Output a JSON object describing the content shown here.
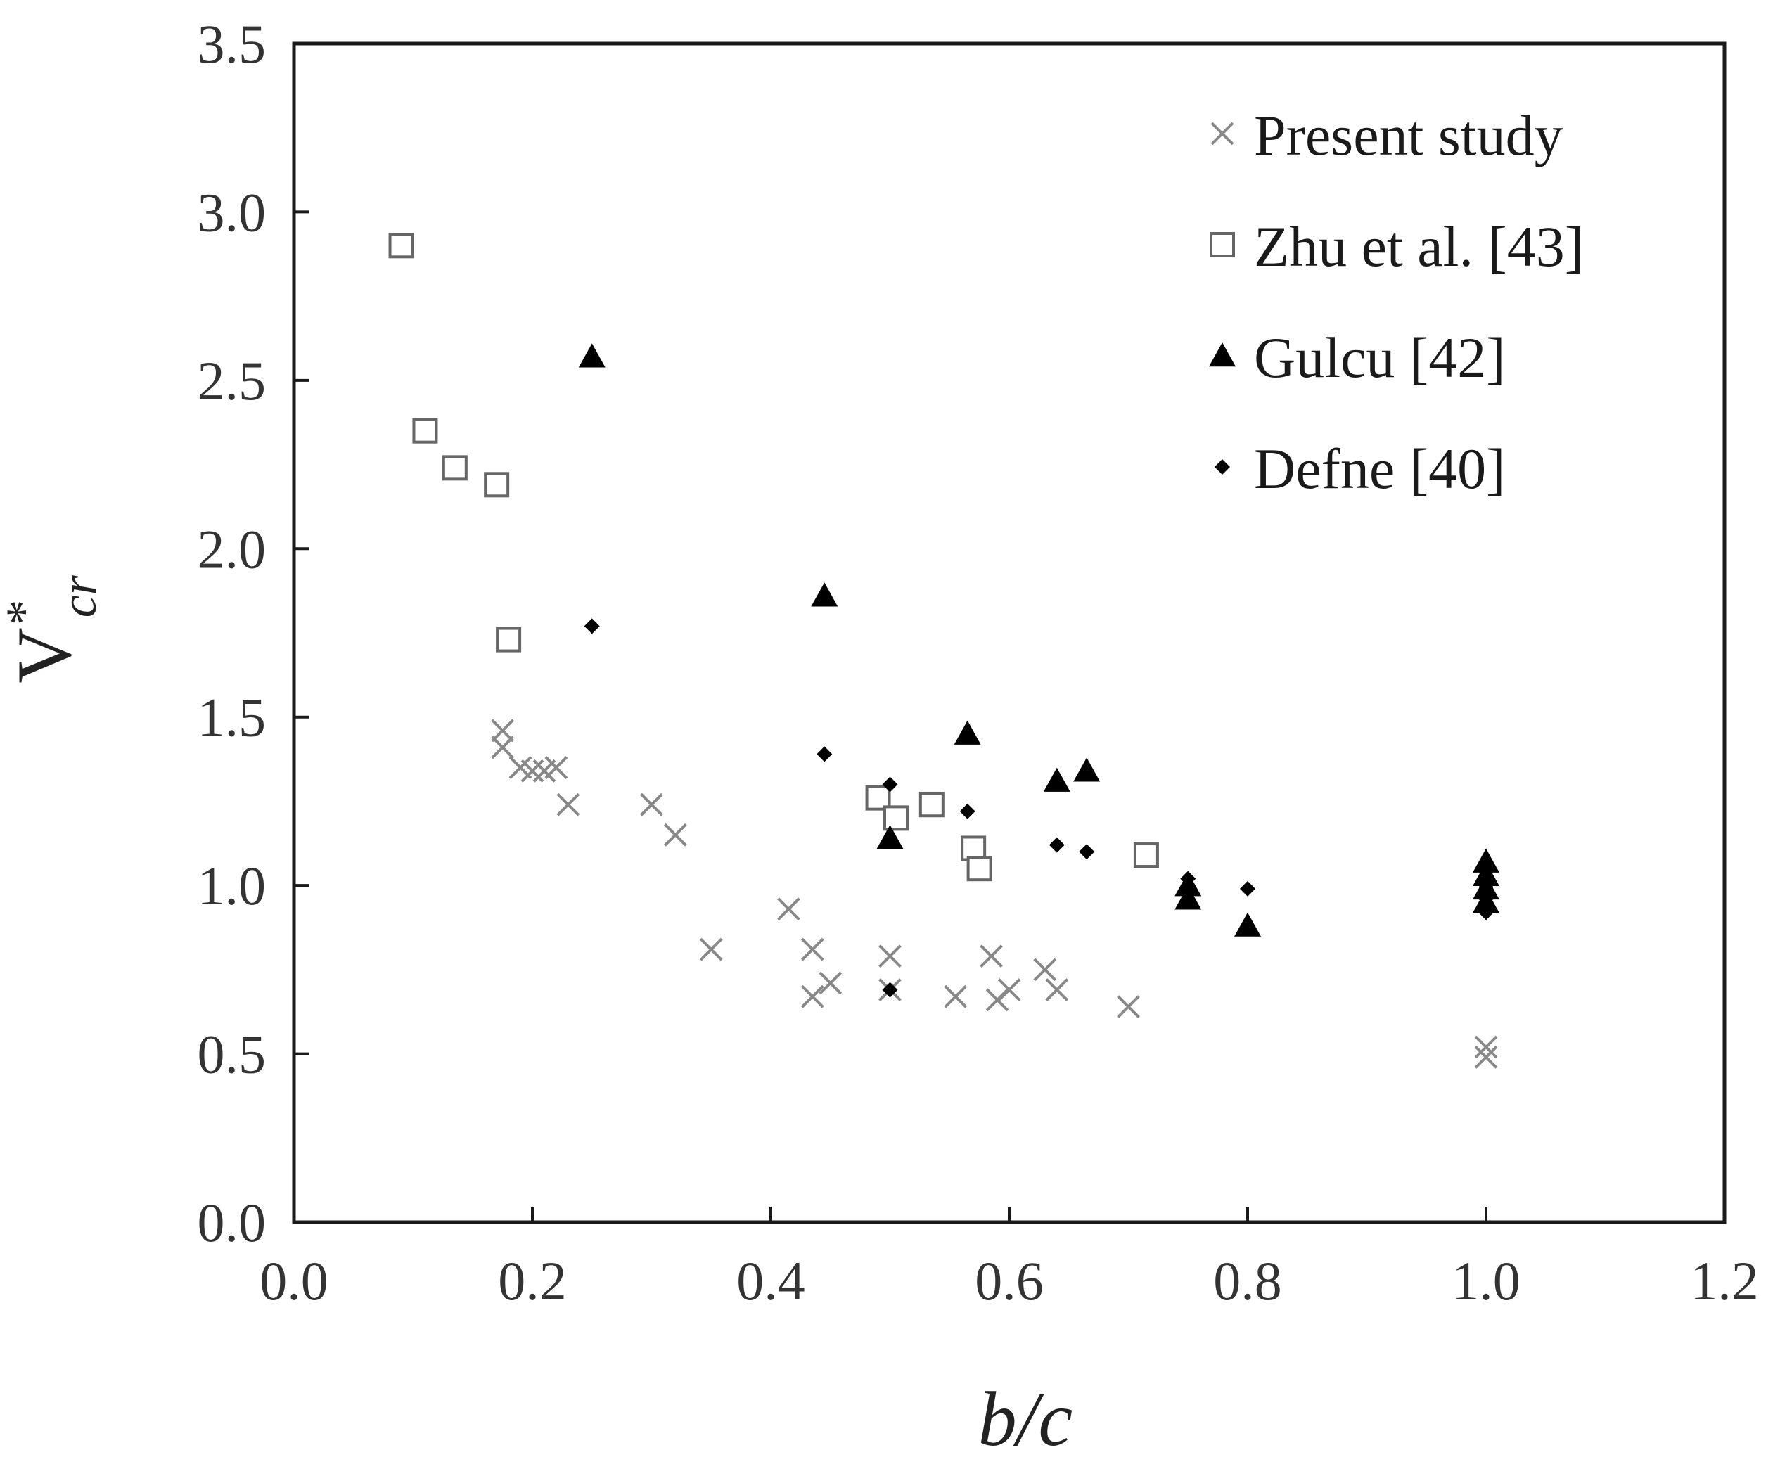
{
  "chart_data": {
    "type": "scatter",
    "title": "",
    "xlabel": "b/c",
    "ylabel": {
      "main": "V",
      "superscript": "*",
      "subscript": "cr"
    },
    "xlim": [
      0.0,
      1.2
    ],
    "ylim": [
      0.0,
      3.5
    ],
    "x_ticks": [
      "0.0",
      "0.2",
      "0.4",
      "0.6",
      "0.8",
      "1.0",
      "1.2"
    ],
    "y_ticks": [
      "0.0",
      "0.5",
      "1.0",
      "1.5",
      "2.0",
      "2.5",
      "3.0",
      "3.5"
    ],
    "grid": false,
    "legend_position": "top-right",
    "series": [
      {
        "name": "Present study",
        "marker": "cross",
        "color": "#888888",
        "points": [
          [
            0.175,
            1.46
          ],
          [
            0.175,
            1.41
          ],
          [
            0.19,
            1.35
          ],
          [
            0.2,
            1.34
          ],
          [
            0.21,
            1.34
          ],
          [
            0.22,
            1.35
          ],
          [
            0.23,
            1.24
          ],
          [
            0.3,
            1.24
          ],
          [
            0.32,
            1.15
          ],
          [
            0.35,
            0.81
          ],
          [
            0.415,
            0.93
          ],
          [
            0.435,
            0.81
          ],
          [
            0.435,
            0.67
          ],
          [
            0.45,
            0.71
          ],
          [
            0.5,
            0.79
          ],
          [
            0.5,
            0.69
          ],
          [
            0.555,
            0.67
          ],
          [
            0.585,
            0.79
          ],
          [
            0.59,
            0.66
          ],
          [
            0.6,
            0.69
          ],
          [
            0.63,
            0.75
          ],
          [
            0.64,
            0.69
          ],
          [
            0.7,
            0.64
          ],
          [
            1.0,
            0.52
          ],
          [
            1.0,
            0.49
          ]
        ]
      },
      {
        "name": "Zhu et al. [43]",
        "marker": "square",
        "color": "#666666",
        "points": [
          [
            0.09,
            2.9
          ],
          [
            0.11,
            2.35
          ],
          [
            0.135,
            2.24
          ],
          [
            0.17,
            2.19
          ],
          [
            0.18,
            1.73
          ],
          [
            0.49,
            1.26
          ],
          [
            0.505,
            1.2
          ],
          [
            0.535,
            1.24
          ],
          [
            0.57,
            1.11
          ],
          [
            0.575,
            1.05
          ],
          [
            0.715,
            1.09
          ]
        ]
      },
      {
        "name": "Gulcu [42]",
        "marker": "triangle",
        "color": "#000000",
        "points": [
          [
            0.25,
            2.57
          ],
          [
            0.445,
            1.86
          ],
          [
            0.5,
            1.14
          ],
          [
            0.565,
            1.45
          ],
          [
            0.64,
            1.31
          ],
          [
            0.665,
            1.34
          ],
          [
            0.75,
            1.0
          ],
          [
            0.75,
            0.96
          ],
          [
            0.8,
            0.88
          ],
          [
            1.0,
            1.07
          ],
          [
            1.0,
            1.03
          ],
          [
            1.0,
            0.99
          ],
          [
            1.0,
            0.95
          ]
        ]
      },
      {
        "name": "Defne [40]",
        "marker": "diamond",
        "color": "#000000",
        "points": [
          [
            0.25,
            1.77
          ],
          [
            0.445,
            1.39
          ],
          [
            0.5,
            1.3
          ],
          [
            0.5,
            0.69
          ],
          [
            0.565,
            1.22
          ],
          [
            0.64,
            1.12
          ],
          [
            0.665,
            1.1
          ],
          [
            0.75,
            1.02
          ],
          [
            0.8,
            0.99
          ],
          [
            1.0,
            1.0
          ],
          [
            1.0,
            0.96
          ],
          [
            1.0,
            0.92
          ]
        ]
      }
    ]
  }
}
